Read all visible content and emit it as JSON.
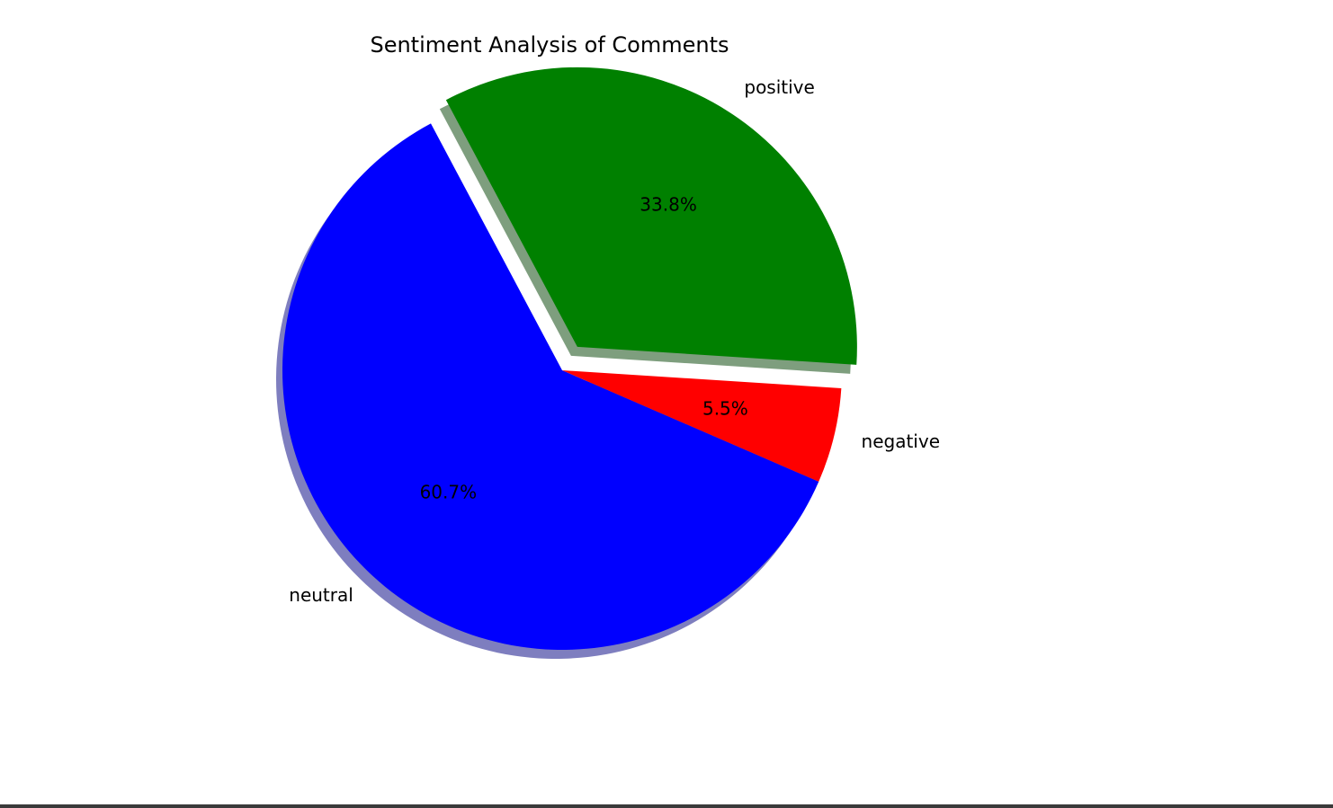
{
  "chart_data": {
    "type": "pie",
    "title": "Sentiment Analysis of Comments",
    "slices": [
      {
        "label": "neutral",
        "value": 60.7,
        "pct_label": "60.7%",
        "color": "#0000ff",
        "explode": 0
      },
      {
        "label": "negative",
        "value": 5.5,
        "pct_label": "5.5%",
        "color": "#ff0000",
        "explode": 0
      },
      {
        "label": "positive",
        "value": 33.8,
        "pct_label": "33.8%",
        "color": "#008000",
        "explode": 0.1
      }
    ],
    "shadow": true,
    "direction": "counterclockwise"
  }
}
